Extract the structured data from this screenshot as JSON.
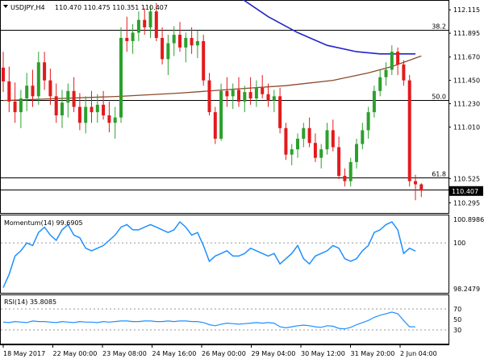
{
  "header": {
    "symbol": "USDJPY,H4",
    "ohlc": "110.470 110.475 110.351 110.407"
  },
  "colors": {
    "bull": "#2ca02c",
    "bear": "#e31a1c",
    "ma_fast": "#2323c8",
    "ma_slow": "#8b4a2b",
    "momentum": "#1e90ff",
    "rsi": "#1e90ff"
  },
  "chart_data": [
    {
      "type": "candlestick",
      "title": "USDJPY,H4",
      "ylim": [
        110.2,
        112.2
      ],
      "price_ticks": [
        "112.115",
        "111.895",
        "111.670",
        "111.450",
        "111.230",
        "111.010",
        "110.525",
        "110.295"
      ],
      "fib_levels": [
        {
          "label": "38.2",
          "value": 111.93
        },
        {
          "label": "50.0",
          "value": 111.265
        },
        {
          "label": "61.8",
          "value": 110.537
        }
      ],
      "extra_hline": 110.42,
      "current_price": "110.407",
      "candles": [
        [
          111.57,
          111.72,
          111.34,
          111.44
        ],
        [
          111.44,
          111.58,
          111.15,
          111.25
        ],
        [
          111.25,
          111.43,
          111.05,
          111.15
        ],
        [
          111.15,
          111.36,
          111.0,
          111.28
        ],
        [
          111.28,
          111.52,
          111.16,
          111.4
        ],
        [
          111.4,
          111.55,
          111.2,
          111.3
        ],
        [
          111.3,
          111.72,
          111.22,
          111.62
        ],
        [
          111.62,
          111.72,
          111.36,
          111.45
        ],
        [
          111.45,
          111.56,
          111.22,
          111.3
        ],
        [
          111.3,
          111.42,
          111.05,
          111.12
        ],
        [
          111.12,
          111.36,
          111.0,
          111.24
        ],
        [
          111.24,
          111.42,
          111.1,
          111.35
        ],
        [
          111.35,
          111.48,
          111.15,
          111.2
        ],
        [
          111.2,
          111.33,
          110.98,
          111.05
        ],
        [
          111.05,
          111.3,
          110.95,
          111.2
        ],
        [
          111.2,
          111.35,
          111.05,
          111.15
        ],
        [
          111.15,
          111.32,
          111.05,
          111.22
        ],
        [
          111.22,
          111.35,
          111.08,
          111.12
        ],
        [
          111.12,
          111.25,
          110.96,
          111.05
        ],
        [
          111.05,
          111.2,
          110.9,
          111.1
        ],
        [
          111.1,
          111.95,
          111.05,
          111.85
        ],
        [
          111.85,
          112.05,
          111.72,
          111.82
        ],
        [
          111.82,
          111.98,
          111.7,
          111.9
        ],
        [
          111.9,
          112.1,
          111.82,
          112.02
        ],
        [
          112.02,
          112.13,
          111.88,
          111.95
        ],
        [
          111.95,
          112.15,
          111.85,
          112.1
        ],
        [
          112.1,
          112.18,
          111.82,
          111.85
        ],
        [
          111.85,
          111.95,
          111.6,
          111.65
        ],
        [
          111.65,
          111.88,
          111.5,
          111.8
        ],
        [
          111.8,
          111.96,
          111.68,
          111.88
        ],
        [
          111.88,
          112.0,
          111.72,
          111.76
        ],
        [
          111.76,
          111.9,
          111.62,
          111.85
        ],
        [
          111.85,
          111.95,
          111.7,
          111.78
        ],
        [
          111.78,
          111.92,
          111.66,
          111.82
        ],
        [
          111.82,
          111.88,
          111.4,
          111.45
        ],
        [
          111.45,
          111.52,
          111.12,
          111.15
        ],
        [
          111.15,
          111.2,
          110.85,
          110.9
        ],
        [
          110.9,
          111.42,
          110.88,
          111.35
        ],
        [
          111.35,
          111.48,
          111.2,
          111.3
        ],
        [
          111.3,
          111.42,
          111.18,
          111.36
        ],
        [
          111.36,
          111.48,
          111.2,
          111.25
        ],
        [
          111.25,
          111.4,
          111.15,
          111.34
        ],
        [
          111.34,
          111.48,
          111.22,
          111.28
        ],
        [
          111.28,
          111.45,
          111.2,
          111.38
        ],
        [
          111.38,
          111.5,
          111.28,
          111.32
        ],
        [
          111.32,
          111.42,
          111.2,
          111.26
        ],
        [
          111.26,
          111.36,
          111.15,
          111.3
        ],
        [
          111.3,
          111.38,
          110.95,
          111.0
        ],
        [
          111.0,
          111.05,
          110.7,
          110.75
        ],
        [
          110.75,
          110.85,
          110.65,
          110.8
        ],
        [
          110.8,
          110.95,
          110.72,
          110.9
        ],
        [
          110.9,
          111.05,
          110.82,
          111.0
        ],
        [
          111.0,
          111.1,
          110.82,
          110.86
        ],
        [
          110.86,
          110.95,
          110.68,
          110.72
        ],
        [
          110.72,
          110.85,
          110.62,
          110.8
        ],
        [
          110.8,
          111.05,
          110.75,
          110.98
        ],
        [
          110.98,
          111.08,
          110.78,
          110.82
        ],
        [
          110.82,
          110.92,
          110.52,
          110.55
        ],
        [
          110.55,
          110.62,
          110.45,
          110.5
        ],
        [
          110.5,
          110.72,
          110.45,
          110.68
        ],
        [
          110.68,
          110.9,
          110.62,
          110.85
        ],
        [
          110.85,
          111.05,
          110.8,
          110.98
        ],
        [
          110.98,
          111.2,
          110.9,
          111.15
        ],
        [
          111.15,
          111.4,
          111.1,
          111.35
        ],
        [
          111.35,
          111.55,
          111.3,
          111.48
        ],
        [
          111.48,
          111.62,
          111.4,
          111.55
        ],
        [
          111.55,
          111.78,
          111.5,
          111.72
        ],
        [
          111.72,
          111.76,
          111.5,
          111.6
        ],
        [
          111.6,
          111.64,
          111.4,
          111.45
        ],
        [
          111.45,
          111.5,
          110.45,
          110.5
        ],
        [
          110.5,
          110.56,
          110.32,
          110.47
        ],
        [
          110.47,
          110.48,
          110.35,
          110.41
        ]
      ],
      "ma_fast": [
        [
          40.5,
          112.22
        ],
        [
          45,
          112.05
        ],
        [
          50,
          111.9
        ],
        [
          55,
          111.78
        ],
        [
          60,
          111.72
        ],
        [
          64,
          111.7
        ],
        [
          70,
          111.7
        ]
      ],
      "ma_slow": [
        [
          0,
          111.26
        ],
        [
          10,
          111.28
        ],
        [
          20,
          111.3
        ],
        [
          30,
          111.33
        ],
        [
          40,
          111.37
        ],
        [
          48,
          111.4
        ],
        [
          56,
          111.45
        ],
        [
          62,
          111.52
        ],
        [
          66,
          111.58
        ],
        [
          70,
          111.66
        ],
        [
          71,
          111.68
        ]
      ]
    },
    {
      "type": "line",
      "title": "Momentum(14) 99.6905",
      "ylim": [
        98.1,
        101.05
      ],
      "tick_labels": [
        "100.8986",
        "100",
        "98.2479"
      ],
      "reference_level": 100,
      "values": [
        98.3,
        98.8,
        99.5,
        99.7,
        100.0,
        99.9,
        100.4,
        100.6,
        100.3,
        100.1,
        100.5,
        100.7,
        100.3,
        100.2,
        99.8,
        99.7,
        99.8,
        99.9,
        100.1,
        100.3,
        100.6,
        100.7,
        100.5,
        100.5,
        100.6,
        100.7,
        100.6,
        100.5,
        100.4,
        100.5,
        100.8,
        100.6,
        100.3,
        100.4,
        99.9,
        99.3,
        99.5,
        99.6,
        99.7,
        99.5,
        99.5,
        99.6,
        99.8,
        99.7,
        99.6,
        99.5,
        99.6,
        99.2,
        99.4,
        99.6,
        99.9,
        99.4,
        99.2,
        99.5,
        99.6,
        99.7,
        99.9,
        99.8,
        99.4,
        99.3,
        99.4,
        99.7,
        99.9,
        100.4,
        100.5,
        100.7,
        100.8,
        100.5,
        99.6,
        99.8,
        99.69
      ]
    },
    {
      "type": "line",
      "title": "RSI(14) 35.8085",
      "ylim": [
        0,
        100
      ],
      "tick_labels": [
        "70",
        "50",
        "30"
      ],
      "levels": [
        70,
        30
      ],
      "values": [
        45,
        44,
        46,
        45,
        44,
        47,
        46,
        46,
        45,
        44,
        46,
        45,
        44,
        46,
        45,
        45,
        44,
        46,
        45,
        46,
        47,
        47,
        46,
        46,
        47,
        47,
        46,
        46,
        47,
        46,
        47,
        47,
        46,
        46,
        44,
        40,
        38,
        41,
        43,
        42,
        41,
        42,
        43,
        44,
        43,
        44,
        43,
        36,
        34,
        36,
        38,
        39,
        38,
        36,
        35,
        38,
        37,
        33,
        32,
        35,
        40,
        44,
        48,
        54,
        58,
        61,
        64,
        61,
        48,
        36,
        35.8
      ]
    }
  ],
  "x_axis": {
    "labels": [
      "18 May 2017",
      "22 May 00:00",
      "23 May 08:00",
      "24 May 16:00",
      "26 May 00:00",
      "29 May 04:00",
      "30 May 12:00",
      "31 May 20:00",
      "2 Jun 04:00"
    ]
  }
}
